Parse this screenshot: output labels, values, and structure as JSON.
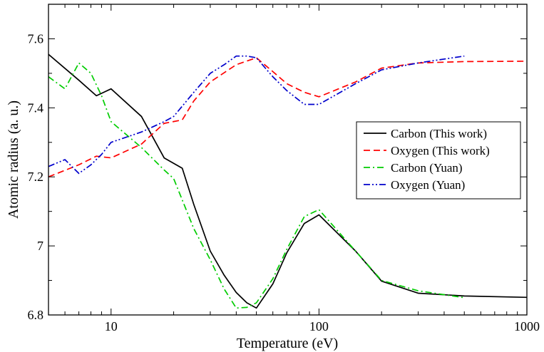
{
  "chart_data": {
    "type": "line",
    "title": "",
    "xlabel": "Temperature (eV)",
    "ylabel": "Atomic radius (a. u.)",
    "xscale": "log",
    "xlim": [
      5,
      1000
    ],
    "ylim": [
      6.8,
      7.7
    ],
    "xticks": [
      {
        "value": 10,
        "label": "10"
      },
      {
        "value": 100,
        "label": "100"
      },
      {
        "value": 1000,
        "label": "1000"
      }
    ],
    "yticks": [
      {
        "value": 6.8,
        "label": "6.8"
      },
      {
        "value": 7.0,
        "label": "7"
      },
      {
        "value": 7.2,
        "label": "7.2"
      },
      {
        "value": 7.4,
        "label": "7.4"
      },
      {
        "value": 7.6,
        "label": "7.6"
      }
    ],
    "grid": false,
    "legend_position": "right",
    "series": [
      {
        "name": "Carbon (This work)",
        "color": "#000000",
        "dash": "solid",
        "x": [
          5,
          7,
          8.5,
          10,
          14,
          18,
          22,
          25,
          30,
          35,
          40,
          45,
          50,
          60,
          70,
          85,
          100,
          150,
          200,
          300,
          500,
          1000
        ],
        "y": [
          7.555,
          7.48,
          7.435,
          7.455,
          7.375,
          7.255,
          7.225,
          7.12,
          6.985,
          6.915,
          6.865,
          6.835,
          6.82,
          6.89,
          6.98,
          7.065,
          7.09,
          6.985,
          6.898,
          6.863,
          6.855,
          6.851
        ]
      },
      {
        "name": "Oxygen (This work)",
        "color": "#ff0000",
        "dash": "dashed",
        "x": [
          5,
          7,
          8.5,
          10,
          14,
          18,
          22,
          25,
          30,
          40,
          50,
          60,
          70,
          85,
          100,
          150,
          200,
          300,
          500,
          1000
        ],
        "y": [
          7.2,
          7.235,
          7.26,
          7.255,
          7.295,
          7.355,
          7.365,
          7.42,
          7.475,
          7.525,
          7.545,
          7.505,
          7.47,
          7.445,
          7.432,
          7.475,
          7.515,
          7.53,
          7.534,
          7.535
        ]
      },
      {
        "name": "Carbon (Yuan)",
        "color": "#00cc00",
        "dash": "dashdot",
        "x": [
          5,
          6,
          7,
          8,
          9,
          10,
          14,
          18,
          20,
          25,
          30,
          35,
          40,
          45,
          50,
          60,
          70,
          85,
          100,
          150,
          200,
          300,
          500
        ],
        "y": [
          7.49,
          7.455,
          7.53,
          7.5,
          7.435,
          7.36,
          7.285,
          7.22,
          7.195,
          7.05,
          6.96,
          6.875,
          6.82,
          6.822,
          6.835,
          6.905,
          6.99,
          7.085,
          7.105,
          6.985,
          6.9,
          6.87,
          6.85
        ]
      },
      {
        "name": "Oxygen (Yuan)",
        "color": "#0000cc",
        "dash": "dashdotdot",
        "x": [
          5,
          6,
          7,
          8,
          9,
          10,
          14,
          18,
          20,
          25,
          30,
          35,
          40,
          45,
          50,
          60,
          70,
          85,
          100,
          150,
          200,
          300,
          500
        ],
        "y": [
          7.23,
          7.25,
          7.21,
          7.235,
          7.265,
          7.3,
          7.33,
          7.36,
          7.375,
          7.445,
          7.5,
          7.525,
          7.55,
          7.55,
          7.545,
          7.49,
          7.45,
          7.41,
          7.41,
          7.47,
          7.51,
          7.53,
          7.55
        ]
      }
    ]
  }
}
